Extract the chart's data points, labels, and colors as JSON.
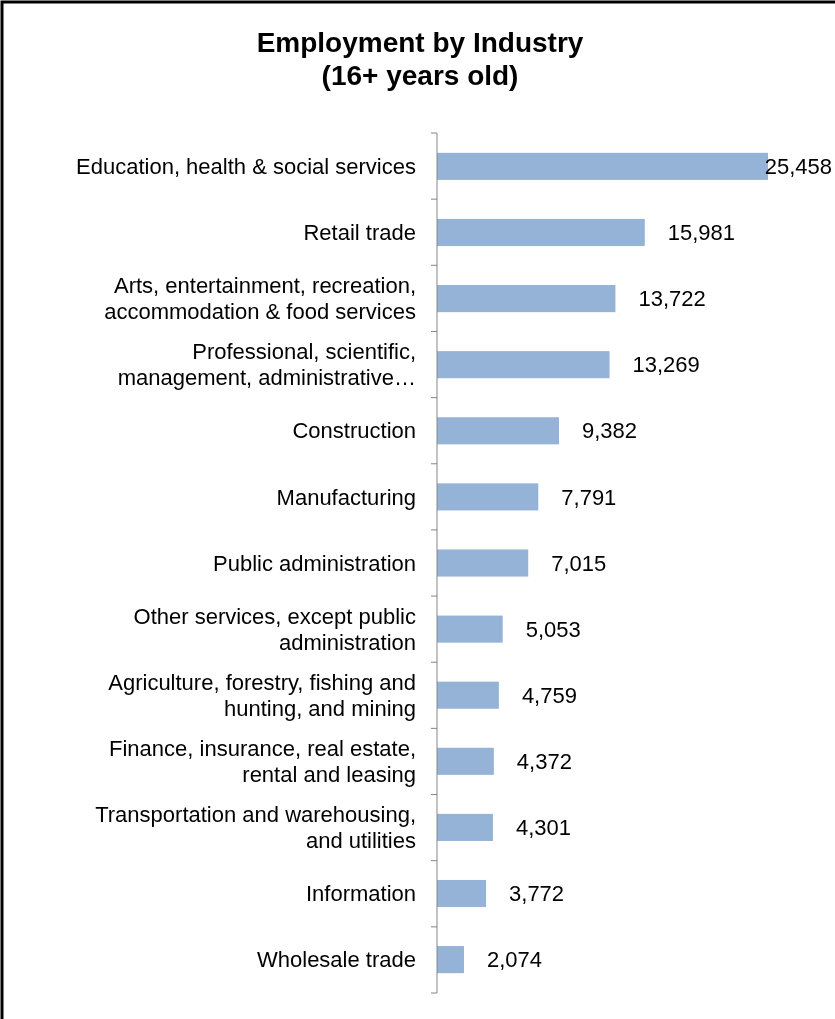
{
  "chart_data": {
    "type": "bar",
    "orientation": "horizontal",
    "title": "Employment by Industry\n(16+ years old)",
    "categories": [
      "Education, health & social services",
      "Retail trade",
      "Arts, entertainment, recreation, accommodation & food services",
      "Professional, scientific, management, administrative…",
      "Construction",
      "Manufacturing",
      "Public administration",
      "Other services, except public administration",
      "Agriculture, forestry, fishing and hunting, and mining",
      "Finance, insurance, real estate, rental and leasing",
      "Transportation and warehousing, and utilities",
      "Information",
      "Wholesale trade"
    ],
    "values": [
      25458,
      15981,
      13722,
      13269,
      9382,
      7791,
      7015,
      5053,
      4759,
      4372,
      4301,
      3772,
      2074
    ],
    "color": "#95b3d7",
    "value_labels": [
      "25,458",
      "15,981",
      "13,722",
      "13,269",
      "9,382",
      "7,791",
      "7,015",
      "5,053",
      "4,759",
      "4,372",
      "4,301",
      "3,772",
      "2,074"
    ]
  }
}
